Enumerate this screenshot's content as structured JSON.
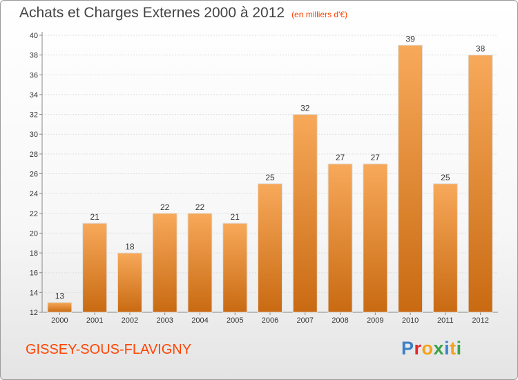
{
  "title": "Achats et Charges Externes 2000 à 2012",
  "unit": "(en milliers d'€)",
  "commune": "GISSEY-SOUS-FLAVIGNY",
  "logo": {
    "text": "Proxiti",
    "letters": [
      {
        "ch": "P",
        "color": "#3b7fc4"
      },
      {
        "ch": "r",
        "color": "#e8262a"
      },
      {
        "ch": "o",
        "color": "#f4a21c"
      },
      {
        "ch": "x",
        "color": "#3aa34a"
      },
      {
        "ch": "i",
        "color": "#3b7fc4"
      },
      {
        "ch": "t",
        "color": "#f4a21c"
      },
      {
        "ch": "i",
        "color": "#3aa34a"
      }
    ]
  },
  "colors": {
    "bar_light": "#f7a95a",
    "bar_dark": "#c96a12",
    "title": "#444444",
    "accent": "#ff4400"
  },
  "chart_data": {
    "type": "bar",
    "categories": [
      "2000",
      "2001",
      "2002",
      "2003",
      "2004",
      "2005",
      "2006",
      "2007",
      "2008",
      "2009",
      "2010",
      "2011",
      "2012"
    ],
    "values": [
      13,
      21,
      18,
      22,
      22,
      21,
      25,
      32,
      27,
      27,
      39,
      25,
      38
    ],
    "ylim": [
      12,
      40
    ],
    "yticks": [
      12,
      14,
      16,
      18,
      20,
      22,
      24,
      26,
      28,
      30,
      32,
      34,
      36,
      38,
      40
    ],
    "grid": true,
    "title": "Achats et Charges Externes 2000 à 2012",
    "xlabel": "",
    "ylabel": ""
  }
}
